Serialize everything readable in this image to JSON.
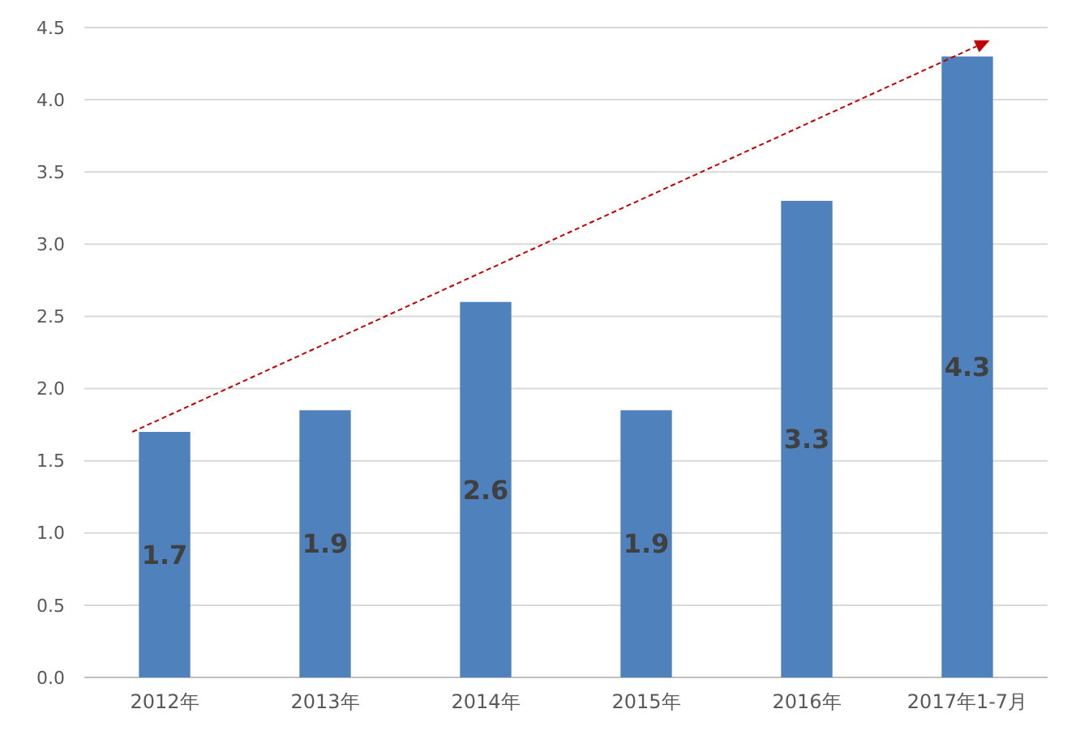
{
  "chart_data": {
    "type": "bar",
    "categories": [
      "2012年",
      "2013年",
      "2014年",
      "2015年",
      "2016年",
      "2017年1-7月"
    ],
    "values": [
      1.7,
      1.85,
      2.6,
      1.85,
      3.3,
      4.3
    ],
    "value_labels": [
      "1.7",
      "1.9",
      "2.6",
      "1.9",
      "3.3",
      "4.3"
    ],
    "color": "#4f81bd",
    "ylim": [
      0,
      4.5
    ],
    "yticks": [
      {
        "value": 0,
        "label": "0.0"
      },
      {
        "value": 0.5,
        "label": "0.5"
      },
      {
        "value": 1,
        "label": "1.0"
      },
      {
        "value": 1.5,
        "label": "1.5"
      },
      {
        "value": 2,
        "label": "2.0"
      },
      {
        "value": 2.5,
        "label": "2.5"
      },
      {
        "value": 3,
        "label": "3.0"
      },
      {
        "value": 3.5,
        "label": "3.5"
      },
      {
        "value": 4,
        "label": "4.0"
      },
      {
        "value": 4.5,
        "label": "4.5"
      }
    ],
    "grid": "y"
  }
}
